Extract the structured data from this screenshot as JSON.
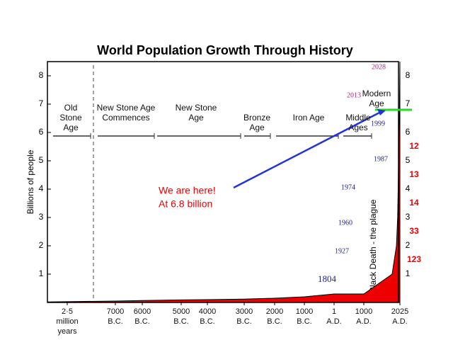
{
  "chart_data": {
    "type": "area",
    "title": "World Population Growth Through History",
    "y_label": "Billions of people",
    "color": "#ee0000",
    "ylim": [
      0,
      8.5
    ],
    "yticks": [
      1,
      2,
      3,
      4,
      5,
      6,
      7,
      8
    ],
    "categories": [
      "2·5 million years",
      "7000 B.C.",
      "6000 B.C.",
      "5000 B.C.",
      "4000 B.C.",
      "3000 B.C.",
      "2000 B.C.",
      "1000 B.C.",
      "1 A.D.",
      "1000 A.D.",
      "2025 A.D."
    ],
    "values": [
      0.02,
      0.05,
      0.07,
      0.09,
      0.1,
      0.12,
      0.15,
      0.2,
      0.3,
      0.3,
      8.5
    ],
    "milestones": [
      {
        "year": 1804,
        "value": 1
      },
      {
        "year": 1927,
        "value": 2
      },
      {
        "year": 1960,
        "value": 3
      },
      {
        "year": 1974,
        "value": 4
      },
      {
        "year": 1987,
        "value": 5
      },
      {
        "year": 1999,
        "value": 6
      },
      {
        "year": 2013,
        "value": 7
      },
      {
        "year": 2028,
        "value": 8
      }
    ],
    "years_between": [
      123,
      33,
      14,
      13,
      12
    ],
    "eras": [
      "Old Stone Age",
      "New Stone Age Commences",
      "New Stone Age",
      "Bronze Age",
      "Iron Age",
      "Middle Ages",
      "Modern Age"
    ],
    "annotation": {
      "line1": "We are here!",
      "line2": "At 6.8 billion",
      "value": 6.8
    },
    "event": "Black Death - the plague"
  }
}
